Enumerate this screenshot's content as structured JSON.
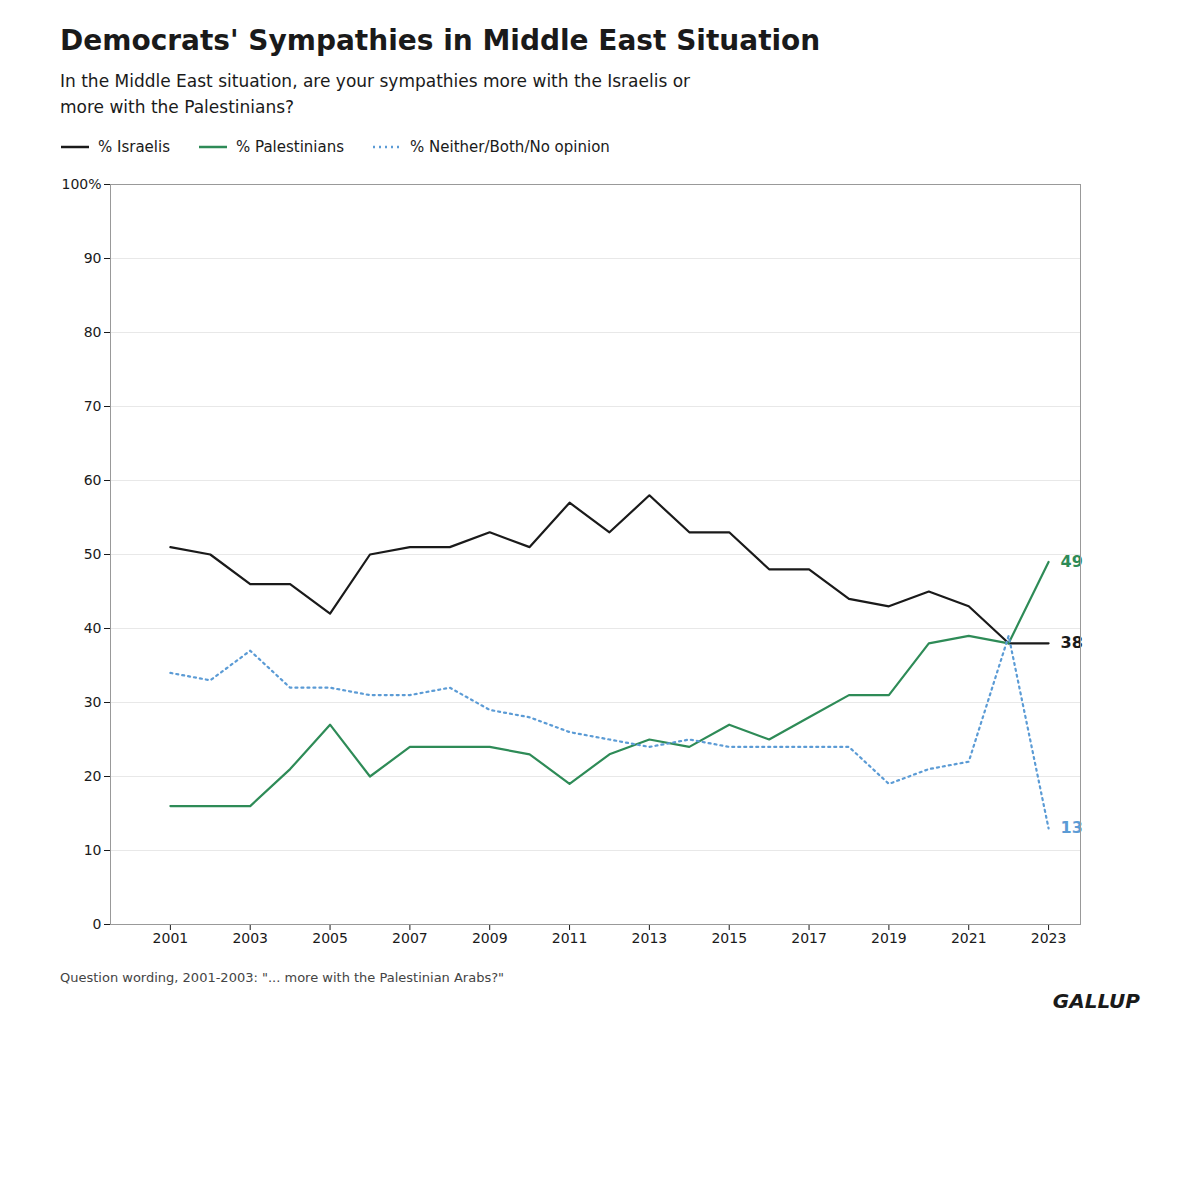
{
  "chart_data": {
    "type": "line",
    "title": "Democrats' Sympathies in Middle East Situation",
    "subtitle": "In the Middle East situation, are your sympathies more with the Israelis or\nmore with the Palestinians?",
    "footnote": "Question wording, 2001-2003: \"... more with the Palestinian Arabs?\"",
    "annotations": [
      "GALLUP"
    ],
    "x": [
      2001,
      2002,
      2003,
      2004,
      2005,
      2006,
      2007,
      2008,
      2009,
      2010,
      2011,
      2012,
      2013,
      2014,
      2015,
      2016,
      2017,
      2018,
      2019,
      2020,
      2021,
      2022,
      2023
    ],
    "series": [
      {
        "name": "% Israelis",
        "color": "#1a1a1a",
        "line_style": "solid",
        "end_label": 38,
        "values": [
          51,
          50,
          46,
          46,
          42,
          50,
          51,
          51,
          53,
          51,
          57,
          53,
          58,
          53,
          53,
          48,
          48,
          44,
          43,
          45,
          43,
          38,
          38
        ]
      },
      {
        "name": "% Palestinians",
        "color": "#2e8b57",
        "line_style": "solid",
        "end_label": 49,
        "values": [
          16,
          16,
          16,
          21,
          27,
          20,
          24,
          24,
          24,
          23,
          19,
          23,
          25,
          24,
          27,
          25,
          28,
          31,
          31,
          38,
          39,
          38,
          49
        ]
      },
      {
        "name": "% Neither/Both/No opinion",
        "color": "#5b9bd5",
        "line_style": "dotted",
        "end_label": 13,
        "values": [
          34,
          33,
          37,
          32,
          32,
          31,
          31,
          32,
          29,
          28,
          26,
          25,
          24,
          25,
          24,
          24,
          24,
          24,
          19,
          21,
          22,
          39,
          13
        ]
      }
    ],
    "xlim": [
      1999.5,
      2023.8
    ],
    "xticks": [
      2001,
      2003,
      2005,
      2007,
      2009,
      2011,
      2013,
      2015,
      2017,
      2019,
      2021,
      2023
    ],
    "ylim": [
      0,
      100
    ],
    "yticks": [
      0,
      10,
      20,
      30,
      40,
      50,
      60,
      70,
      80,
      90,
      {
        "value": 100,
        "label": "100%"
      }
    ],
    "grid": "y",
    "legend": "top"
  }
}
